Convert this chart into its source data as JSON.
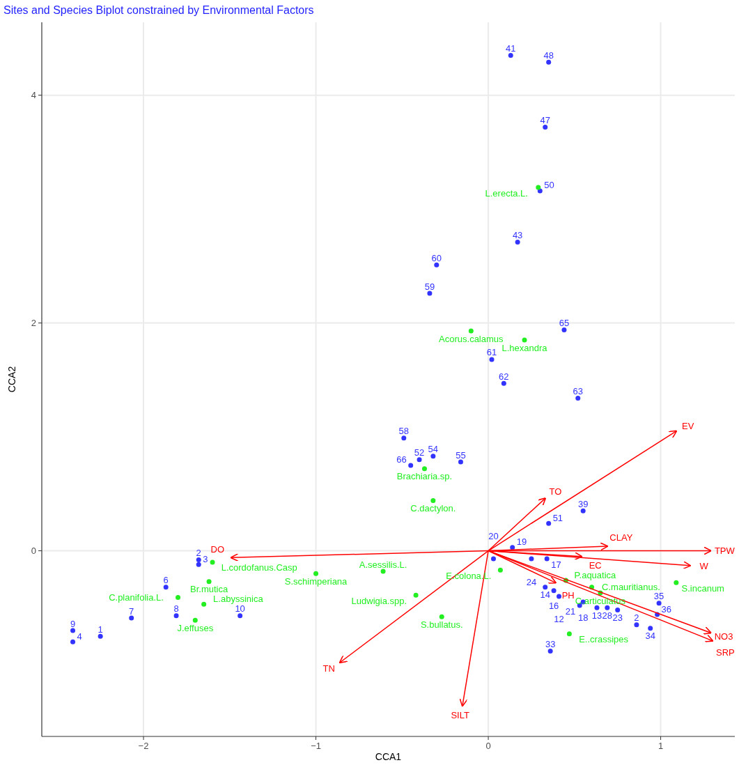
{
  "chart_data": {
    "type": "scatter",
    "title": "Sites and Species Biplot constrained by Environmental Factors",
    "xlabel": "CCA1",
    "ylabel": "CCA2",
    "xlim": [
      -2.59,
      1.43
    ],
    "ylim": [
      -1.63,
      4.64
    ],
    "xticks": [
      -2,
      -1,
      0,
      1
    ],
    "yticks": [
      0,
      2,
      4
    ],
    "grid": true,
    "series": [
      {
        "type": "scatter",
        "marker": "circle",
        "color": "#3333ff",
        "x": [
          0.13,
          0.35,
          0.33,
          0.3,
          0.17,
          -0.3,
          -0.34,
          0.44,
          0.02,
          0.09,
          0.52,
          -0.49,
          -0.4,
          -0.32,
          -0.45,
          -0.16,
          0.55,
          0.35,
          0.14,
          0.03,
          0.25,
          0.34,
          0.33,
          0.38,
          0.41,
          0.55,
          0.53,
          0.63,
          0.69,
          0.75,
          0.99,
          0.98,
          0.94,
          0.86,
          0.36,
          -1.68,
          -1.68,
          -1.87,
          -1.81,
          -1.44,
          -2.07,
          -2.41,
          -2.25,
          -2.41
        ],
        "values": [
          4.35,
          4.29,
          3.72,
          3.16,
          2.71,
          2.51,
          2.26,
          1.94,
          1.68,
          1.47,
          1.34,
          0.99,
          0.8,
          0.83,
          0.75,
          0.78,
          0.35,
          0.24,
          0.03,
          -0.07,
          -0.07,
          -0.07,
          -0.32,
          -0.35,
          -0.4,
          -0.45,
          -0.48,
          -0.5,
          -0.5,
          -0.52,
          -0.46,
          -0.56,
          -0.68,
          -0.65,
          -0.88,
          -0.08,
          -0.12,
          -0.32,
          -0.57,
          -0.57,
          -0.59,
          -0.7,
          -0.75,
          -0.8
        ]
      },
      {
        "type": "scatter",
        "marker": "circle",
        "color": "#22ee22",
        "x": [
          0.29,
          -0.1,
          0.21,
          -0.37,
          -0.32,
          0.07,
          -1.0,
          -0.61,
          -0.42,
          -0.27,
          -1.6,
          -1.62,
          -1.8,
          -1.65,
          -1.7,
          0.47,
          1.09,
          0.45,
          0.6,
          0.65
        ],
        "values": [
          3.19,
          1.93,
          1.85,
          0.72,
          0.44,
          -0.17,
          -0.2,
          -0.18,
          -0.39,
          -0.58,
          -0.1,
          -0.27,
          -0.41,
          -0.47,
          -0.61,
          -0.73,
          -0.28,
          -0.26,
          -0.32,
          -0.37
        ]
      },
      {
        "type": "line",
        "color": "#ff0000",
        "x": [
          0,
          1.09
        ],
        "values": [
          0,
          1.05
        ]
      },
      {
        "type": "line",
        "color": "#ff0000",
        "x": [
          0,
          0.33
        ],
        "values": [
          0,
          0.46
        ]
      },
      {
        "type": "line",
        "color": "#ff0000",
        "x": [
          0,
          0.69
        ],
        "values": [
          0,
          0.04
        ]
      },
      {
        "type": "line",
        "color": "#ff0000",
        "x": [
          0,
          1.29
        ],
        "values": [
          0,
          0.0
        ]
      },
      {
        "type": "line",
        "color": "#ff0000",
        "x": [
          0,
          0.54
        ],
        "values": [
          0,
          -0.05
        ]
      },
      {
        "type": "line",
        "color": "#ff0000",
        "x": [
          0,
          1.17
        ],
        "values": [
          0,
          -0.13
        ]
      },
      {
        "type": "line",
        "color": "#ff0000",
        "x": [
          0,
          0.39
        ],
        "values": [
          0,
          -0.28
        ]
      },
      {
        "type": "line",
        "color": "#ff0000",
        "x": [
          0,
          1.29
        ],
        "values": [
          0,
          -0.72
        ]
      },
      {
        "type": "line",
        "color": "#ff0000",
        "x": [
          0,
          1.3
        ],
        "values": [
          0,
          -0.79
        ]
      },
      {
        "type": "line",
        "color": "#ff0000",
        "x": [
          0,
          -1.49
        ],
        "values": [
          0,
          -0.06
        ]
      },
      {
        "type": "line",
        "color": "#ff0000",
        "x": [
          0,
          -0.86
        ],
        "values": [
          0,
          -0.98
        ]
      },
      {
        "type": "line",
        "color": "#ff0000",
        "x": [
          0,
          -0.15
        ],
        "values": [
          0,
          -1.36
        ]
      }
    ],
    "annotations": [
      {
        "text": "41",
        "x": 0.13,
        "y": 4.35
      },
      {
        "text": "48",
        "x": 0.35,
        "y": 4.29
      },
      {
        "text": "47",
        "x": 0.33,
        "y": 3.72
      },
      {
        "text": "50",
        "x": 0.3,
        "y": 3.16
      },
      {
        "text": "43",
        "x": 0.17,
        "y": 2.71
      },
      {
        "text": "60",
        "x": -0.3,
        "y": 2.51
      },
      {
        "text": "59",
        "x": -0.34,
        "y": 2.26
      },
      {
        "text": "65",
        "x": 0.44,
        "y": 1.94
      },
      {
        "text": "61",
        "x": 0.02,
        "y": 1.68
      },
      {
        "text": "62",
        "x": 0.09,
        "y": 1.47
      },
      {
        "text": "63",
        "x": 0.52,
        "y": 1.34
      },
      {
        "text": "58",
        "x": -0.49,
        "y": 0.99
      },
      {
        "text": "52",
        "x": -0.4,
        "y": 0.8
      },
      {
        "text": "54",
        "x": -0.32,
        "y": 0.83
      },
      {
        "text": "66",
        "x": -0.45,
        "y": 0.75
      },
      {
        "text": "55",
        "x": -0.16,
        "y": 0.78
      },
      {
        "text": "39",
        "x": 0.55,
        "y": 0.35
      },
      {
        "text": "51",
        "x": 0.35,
        "y": 0.24
      },
      {
        "text": "19",
        "x": 0.14,
        "y": 0.03
      },
      {
        "text": "20",
        "x": 0.03,
        "y": -0.07
      },
      {
        "text": "24",
        "x": 0.25,
        "y": -0.07
      },
      {
        "text": "17",
        "x": 0.34,
        "y": -0.07
      },
      {
        "text": "14",
        "x": 0.33,
        "y": -0.32
      },
      {
        "text": "16",
        "x": 0.38,
        "y": -0.35
      },
      {
        "text": "12",
        "x": 0.41,
        "y": -0.4
      },
      {
        "text": "18",
        "x": 0.55,
        "y": -0.45
      },
      {
        "text": "21",
        "x": 0.53,
        "y": -0.48
      },
      {
        "text": "13",
        "x": 0.63,
        "y": -0.5
      },
      {
        "text": "28",
        "x": 0.69,
        "y": -0.5
      },
      {
        "text": "23",
        "x": 0.75,
        "y": -0.52
      },
      {
        "text": "35",
        "x": 0.99,
        "y": -0.46
      },
      {
        "text": "36",
        "x": 0.98,
        "y": -0.56
      },
      {
        "text": "34",
        "x": 0.94,
        "y": -0.68
      },
      {
        "text": "2",
        "x": 0.86,
        "y": -0.65
      },
      {
        "text": "33",
        "x": 0.36,
        "y": -0.88
      },
      {
        "text": "2",
        "x": -1.68,
        "y": -0.08
      },
      {
        "text": "3",
        "x": -1.68,
        "y": -0.12
      },
      {
        "text": "6",
        "x": -1.87,
        "y": -0.32
      },
      {
        "text": "8",
        "x": -1.81,
        "y": -0.57
      },
      {
        "text": "10",
        "x": -1.44,
        "y": -0.57
      },
      {
        "text": "7",
        "x": -2.07,
        "y": -0.59
      },
      {
        "text": "9",
        "x": -2.41,
        "y": -0.7
      },
      {
        "text": "1",
        "x": -2.25,
        "y": -0.75
      },
      {
        "text": "4",
        "x": -2.41,
        "y": -0.8
      },
      {
        "text": "L.erecta.L.",
        "x": 0.29,
        "y": 3.19
      },
      {
        "text": "Acorus.calamus",
        "x": -0.1,
        "y": 1.93
      },
      {
        "text": "L.hexandra",
        "x": 0.21,
        "y": 1.85
      },
      {
        "text": "Brachiaria.sp.",
        "x": -0.37,
        "y": 0.72
      },
      {
        "text": "C.dactylon.",
        "x": -0.32,
        "y": 0.44
      },
      {
        "text": "E.colona.L.",
        "x": 0.07,
        "y": -0.17
      },
      {
        "text": "S.schimperiana",
        "x": -1.0,
        "y": -0.2
      },
      {
        "text": "A.sessilis.L.",
        "x": -0.61,
        "y": -0.18
      },
      {
        "text": "Ludwigia.spp.",
        "x": -0.42,
        "y": -0.39
      },
      {
        "text": "S.bullatus.",
        "x": -0.27,
        "y": -0.58
      },
      {
        "text": "L.cordofanus.Casp",
        "x": -1.6,
        "y": -0.1
      },
      {
        "text": "Br.mutica",
        "x": -1.62,
        "y": -0.27
      },
      {
        "text": "C.planifolia.L.",
        "x": -1.8,
        "y": -0.41
      },
      {
        "text": "L.abyssinica",
        "x": -1.65,
        "y": -0.47
      },
      {
        "text": "J.effuses",
        "x": -1.7,
        "y": -0.61
      },
      {
        "text": "E..crassipes",
        "x": 0.47,
        "y": -0.73
      },
      {
        "text": "S.incanum",
        "x": 1.09,
        "y": -0.28
      },
      {
        "text": "P.aquatica",
        "x": 0.45,
        "y": -0.26
      },
      {
        "text": "C.mauritianus.",
        "x": 0.6,
        "y": -0.32
      },
      {
        "text": "C.articulatus",
        "x": 0.65,
        "y": -0.37
      },
      {
        "text": "EV",
        "x": 1.09,
        "y": 1.05
      },
      {
        "text": "TO",
        "x": 0.33,
        "y": 0.46
      },
      {
        "text": "CLAY",
        "x": 0.69,
        "y": 0.04
      },
      {
        "text": "TPW",
        "x": 1.29,
        "y": 0.0
      },
      {
        "text": "EC",
        "x": 0.54,
        "y": -0.05
      },
      {
        "text": "W",
        "x": 1.17,
        "y": -0.13
      },
      {
        "text": "PH",
        "x": 0.39,
        "y": -0.28
      },
      {
        "text": "NO3",
        "x": 1.29,
        "y": -0.72
      },
      {
        "text": "SRP",
        "x": 1.3,
        "y": -0.79
      },
      {
        "text": "DO",
        "x": -1.49,
        "y": -0.06
      },
      {
        "text": "TN",
        "x": -0.86,
        "y": -0.98
      },
      {
        "text": "SILT",
        "x": -0.15,
        "y": -1.36
      }
    ]
  }
}
